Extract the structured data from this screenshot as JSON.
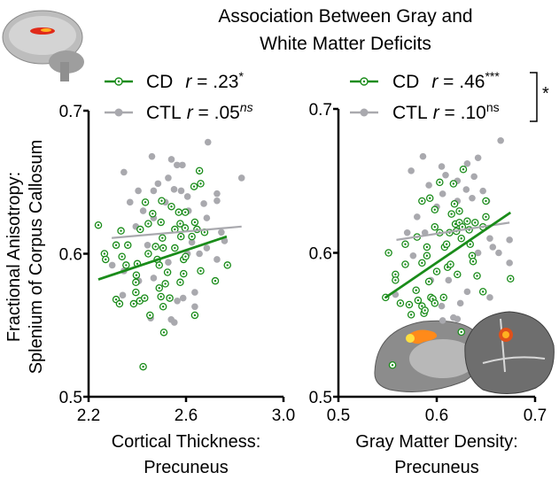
{
  "title_lines": [
    "Association Between Gray and",
    "White Matter Deficits"
  ],
  "ylabel_lines": [
    "Fractional Anisotropy:",
    "Splenium of Corpus Callosum"
  ],
  "colors": {
    "CD": "#1a8c1a",
    "CTL": "#a9a9ae"
  },
  "comparison_marker": "*",
  "chart_data": [
    {
      "type": "scatter",
      "xlabel_lines": [
        "Cortical Thickness:",
        "Precuneus"
      ],
      "xlim": [
        2.2,
        3.0
      ],
      "xticks": [
        "2.2",
        "2.6",
        "3.0"
      ],
      "ylim": [
        0.5,
        0.7
      ],
      "yticks": [
        "0.5",
        "0.6",
        "0.7"
      ],
      "legend": {
        "placement": "top",
        "CD": {
          "name": "CD",
          "r": "r",
          "eq": " = .23",
          "sup": "*"
        },
        "CTL": {
          "name": "CTL",
          "r": "r",
          "eq": " = .05",
          "sup": "ns"
        }
      },
      "series": [
        {
          "name": "CD",
          "marker": "open-circle-dot",
          "points": [
            [
              2.24,
              0.62
            ],
            [
              2.265,
              0.6
            ],
            [
              2.27,
              0.596
            ],
            [
              2.313,
              0.606
            ],
            [
              2.333,
              0.616
            ],
            [
              2.337,
              0.598
            ],
            [
              2.354,
              0.592
            ],
            [
              2.361,
              0.606
            ],
            [
              2.313,
              0.568
            ],
            [
              2.327,
              0.565
            ],
            [
              2.4,
              0.593
            ],
            [
              2.396,
              0.585
            ],
            [
              2.394,
              0.58
            ],
            [
              2.394,
              0.573
            ],
            [
              2.385,
              0.565
            ],
            [
              2.41,
              0.567
            ],
            [
              2.43,
              0.569
            ],
            [
              2.452,
              0.557
            ],
            [
              2.424,
              0.521
            ],
            [
              2.433,
              0.636
            ],
            [
              2.412,
              0.617
            ],
            [
              2.445,
              0.621
            ],
            [
              2.445,
              0.6
            ],
            [
              2.463,
              0.628
            ],
            [
              2.475,
              0.605
            ],
            [
              2.482,
              0.596
            ],
            [
              2.49,
              0.592
            ],
            [
              2.497,
              0.622
            ],
            [
              2.5,
              0.637
            ],
            [
              2.503,
              0.611
            ],
            [
              2.506,
              0.604
            ],
            [
              2.49,
              0.576
            ],
            [
              2.497,
              0.57
            ],
            [
              2.506,
              0.563
            ],
            [
              2.509,
              0.545
            ],
            [
              2.515,
              0.579
            ],
            [
              2.524,
              0.587
            ],
            [
              2.533,
              0.569
            ],
            [
              2.54,
              0.633
            ],
            [
              2.554,
              0.604
            ],
            [
              2.554,
              0.617
            ],
            [
              2.57,
              0.629
            ],
            [
              2.576,
              0.621
            ],
            [
              2.576,
              0.58
            ],
            [
              2.579,
              0.612
            ],
            [
              2.59,
              0.586
            ],
            [
              2.59,
              0.596
            ],
            [
              2.597,
              0.629
            ],
            [
              2.598,
              0.598
            ],
            [
              2.596,
              0.618
            ],
            [
              2.624,
              0.612
            ],
            [
              2.636,
              0.557
            ],
            [
              2.636,
              0.622
            ],
            [
              2.645,
              0.617
            ],
            [
              2.633,
              0.647
            ],
            [
              2.66,
              0.649
            ],
            [
              2.655,
              0.658
            ],
            [
              2.66,
              0.588
            ],
            [
              2.676,
              0.615
            ],
            [
              2.72,
              0.581
            ],
            [
              2.77,
              0.592
            ]
          ],
          "fit": [
            [
              2.24,
              0.582
            ],
            [
              2.767,
              0.612
            ]
          ]
        },
        {
          "name": "CTL",
          "marker": "filled-circle",
          "points": [
            [
              2.69,
              0.678
            ],
            [
              2.46,
              0.668
            ],
            [
              2.54,
              0.666
            ],
            [
              2.563,
              0.662
            ],
            [
              2.585,
              0.662
            ],
            [
              2.345,
              0.657
            ],
            [
              2.527,
              0.653
            ],
            [
              2.828,
              0.653
            ],
            [
              2.485,
              0.649
            ],
            [
              2.404,
              0.644
            ],
            [
              2.467,
              0.644
            ],
            [
              2.58,
              0.644
            ],
            [
              2.727,
              0.642
            ],
            [
              2.606,
              0.64
            ],
            [
              2.37,
              0.636
            ],
            [
              2.673,
              0.635
            ],
            [
              2.727,
              0.637
            ],
            [
              2.515,
              0.636
            ],
            [
              2.424,
              0.63
            ],
            [
              2.61,
              0.63
            ],
            [
              2.467,
              0.625
            ],
            [
              2.394,
              0.619
            ],
            [
              2.685,
              0.625
            ],
            [
              2.745,
              0.615
            ],
            [
              2.758,
              0.609
            ],
            [
              2.297,
              0.592
            ],
            [
              2.345,
              0.588
            ],
            [
              2.442,
              0.606
            ],
            [
              2.606,
              0.6
            ],
            [
              2.655,
              0.6
            ],
            [
              2.685,
              0.604
            ],
            [
              2.727,
              0.596
            ],
            [
              2.467,
              0.583
            ],
            [
              2.527,
              0.594
            ],
            [
              2.564,
              0.567
            ],
            [
              2.588,
              0.569
            ],
            [
              2.636,
              0.573
            ],
            [
              2.636,
              0.563
            ],
            [
              2.539,
              0.554
            ],
            [
              2.552,
              0.552
            ],
            [
              2.455,
              0.555
            ],
            [
              2.34,
              0.571
            ],
            [
              2.406,
              0.581
            ],
            [
              2.551,
              0.645
            ],
            [
              2.624,
              0.608
            ]
          ],
          "fit": [
            [
              2.295,
              0.611
            ],
            [
              2.828,
              0.619
            ]
          ]
        }
      ]
    },
    {
      "type": "scatter",
      "xlabel_lines": [
        "Gray Matter Density:",
        "Precuneus"
      ],
      "xlim": [
        0.5,
        0.7
      ],
      "xticks": [
        "0.5",
        "0.6",
        "0.7"
      ],
      "ylim": [
        0.5,
        0.7
      ],
      "yticks": [
        "0.5",
        "0.6",
        "0.7"
      ],
      "legend": {
        "placement": "top",
        "CD": {
          "name": "CD",
          "r": "r",
          "eq": " = .46",
          "sup": "***"
        },
        "CTL": {
          "name": "CTL",
          "r": "r",
          "eq": " = .10",
          "sup": "ns"
        }
      },
      "series": [
        {
          "name": "CD",
          "marker": "open-circle-dot",
          "points": [
            [
              0.548,
              0.569
            ],
            [
              0.551,
              0.6
            ],
            [
              0.558,
              0.585
            ],
            [
              0.558,
              0.581
            ],
            [
              0.563,
              0.565
            ],
            [
              0.568,
              0.606
            ],
            [
              0.568,
              0.592
            ],
            [
              0.572,
              0.564
            ],
            [
              0.574,
              0.557
            ],
            [
              0.579,
              0.574
            ],
            [
              0.58,
              0.611
            ],
            [
              0.581,
              0.567
            ],
            [
              0.585,
              0.593
            ],
            [
              0.585,
              0.563
            ],
            [
              0.587,
              0.558
            ],
            [
              0.588,
              0.56
            ],
            [
              0.59,
              0.604
            ],
            [
              0.59,
              0.598
            ],
            [
              0.592,
              0.58
            ],
            [
              0.594,
              0.569
            ],
            [
              0.596,
              0.568
            ],
            [
              0.598,
              0.565
            ],
            [
              0.585,
              0.636
            ],
            [
              0.593,
              0.638
            ],
            [
              0.598,
              0.63
            ],
            [
              0.598,
              0.618
            ],
            [
              0.6,
              0.587
            ],
            [
              0.603,
              0.649
            ],
            [
              0.603,
              0.614
            ],
            [
              0.607,
              0.569
            ],
            [
              0.608,
              0.604
            ],
            [
              0.61,
              0.606
            ],
            [
              0.611,
              0.59
            ],
            [
              0.613,
              0.614
            ],
            [
              0.614,
              0.592
            ],
            [
              0.615,
              0.627
            ],
            [
              0.617,
              0.648
            ],
            [
              0.618,
              0.634
            ],
            [
              0.619,
              0.62
            ],
            [
              0.62,
              0.615
            ],
            [
              0.621,
              0.585
            ],
            [
              0.623,
              0.629
            ],
            [
              0.623,
              0.621
            ],
            [
              0.625,
              0.61
            ],
            [
              0.625,
              0.545
            ],
            [
              0.626,
              0.618
            ],
            [
              0.627,
              0.658
            ],
            [
              0.631,
              0.622
            ],
            [
              0.633,
              0.616
            ],
            [
              0.634,
              0.606
            ],
            [
              0.636,
              0.598
            ],
            [
              0.637,
              0.594
            ],
            [
              0.639,
              0.621
            ],
            [
              0.641,
              0.584
            ],
            [
              0.647,
              0.573
            ],
            [
              0.647,
              0.618
            ],
            [
              0.65,
              0.625
            ],
            [
              0.65,
              0.636
            ],
            [
              0.675,
              0.582
            ],
            [
              0.555,
              0.522
            ]
          ],
          "fit": [
            [
              0.548,
              0.569
            ],
            [
              0.675,
              0.628
            ]
          ]
        },
        {
          "name": "CTL",
          "marker": "filled-circle",
          "points": [
            [
              0.665,
              0.678
            ],
            [
              0.586,
              0.667
            ],
            [
              0.605,
              0.66
            ],
            [
              0.642,
              0.666
            ],
            [
              0.631,
              0.662
            ],
            [
              0.574,
              0.657
            ],
            [
              0.609,
              0.654
            ],
            [
              0.621,
              0.65
            ],
            [
              0.638,
              0.653
            ],
            [
              0.592,
              0.647
            ],
            [
              0.606,
              0.641
            ],
            [
              0.63,
              0.644
            ],
            [
              0.647,
              0.643
            ],
            [
              0.58,
              0.625
            ],
            [
              0.6,
              0.632
            ],
            [
              0.621,
              0.636
            ],
            [
              0.636,
              0.638
            ],
            [
              0.651,
              0.636
            ],
            [
              0.57,
              0.614
            ],
            [
              0.588,
              0.614
            ],
            [
              0.654,
              0.61
            ],
            [
              0.657,
              0.604
            ],
            [
              0.663,
              0.6
            ],
            [
              0.674,
              0.609
            ],
            [
              0.674,
              0.593
            ],
            [
              0.576,
              0.598
            ],
            [
              0.558,
              0.571
            ],
            [
              0.594,
              0.581
            ],
            [
              0.612,
              0.581
            ],
            [
              0.631,
              0.573
            ],
            [
              0.624,
              0.565
            ],
            [
              0.654,
              0.569
            ],
            [
              0.606,
              0.553
            ],
            [
              0.617,
              0.555
            ],
            [
              0.621,
              0.554
            ],
            [
              0.605,
              0.563
            ],
            [
              0.642,
              0.6
            ]
          ],
          "fit": [
            [
              0.559,
              0.609
            ],
            [
              0.674,
              0.621
            ]
          ]
        }
      ]
    }
  ]
}
